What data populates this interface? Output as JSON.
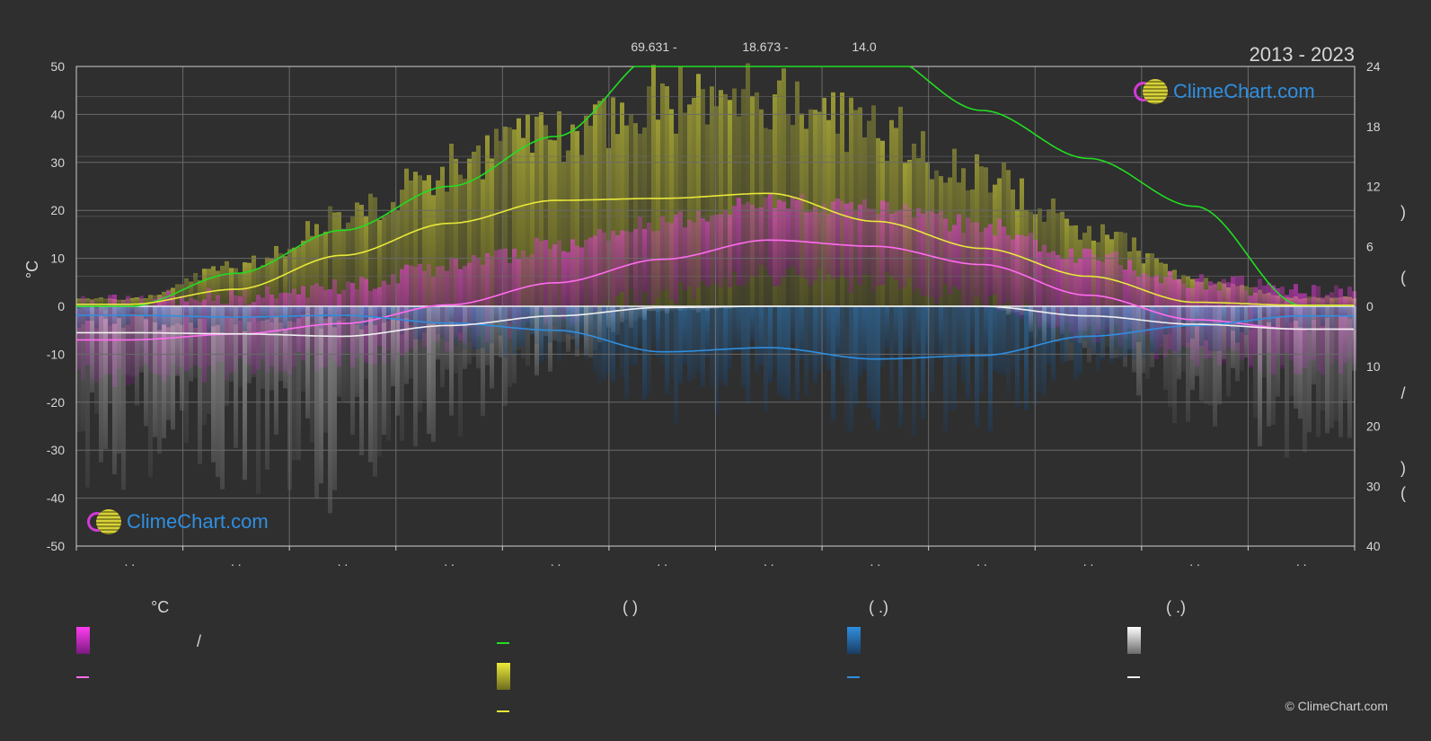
{
  "header": {
    "years": "2013 - 2023",
    "stat_values": [
      "69.631 -",
      "18.673 -",
      "14.0"
    ]
  },
  "axes": {
    "left_unit": "°C",
    "left_ticks": [
      "50",
      "40",
      "30",
      "20",
      "10",
      "0",
      "-10",
      "-20",
      "-30",
      "-40",
      "-50"
    ],
    "right_upper_ticks": [
      "24",
      "18",
      "12",
      "6",
      "0"
    ],
    "right_lower_ticks": [
      "10",
      "20",
      "30",
      "40"
    ],
    "right_label_glyphs": [
      ")",
      "(",
      "/",
      ")",
      "("
    ],
    "month_ticks": [
      ". .",
      ". .",
      ". .",
      ". .",
      ". .",
      ". .",
      ". .",
      ". .",
      ". .",
      ". .",
      ". .",
      ". ."
    ]
  },
  "logos": {
    "top_text": "ClimeChart.com",
    "bottom_text": "ClimeChart.com"
  },
  "legend": {
    "col1_head": "°C",
    "col1_item1": "/",
    "col2_head": "(          )",
    "col3_head": "(   .)",
    "col4_head": "(   .)"
  },
  "copyright": "© ClimeChart.com",
  "colors": {
    "background": "#2f2f2f",
    "grid": "#6a6a6a",
    "daylight": "#22dd22",
    "sunshine": "#e8e83a",
    "temp_mean": "#ff6cf0",
    "temp_band": "#e23ae8",
    "precip": "#2f8fe0",
    "snow": "#f0f0f0"
  },
  "chart_data": {
    "type": "line",
    "title": "",
    "ylabel": "°C",
    "ylim": [
      -50,
      50
    ],
    "y2_hours_lim": [
      0,
      24
    ],
    "y2_mm_lim": [
      0,
      40
    ],
    "x": [
      1,
      2,
      3,
      4,
      5,
      6,
      7,
      8,
      9,
      10,
      11,
      12
    ],
    "series": [
      {
        "key": "daylight",
        "axis": "hours",
        "values": [
          0.0,
          3.3,
          7.6,
          12.0,
          17.0,
          25.5,
          25.5,
          25.5,
          19.6,
          14.8,
          10.0,
          0.1
        ]
      },
      {
        "key": "sunshine",
        "axis": "hours",
        "values": [
          0.2,
          1.7,
          5.1,
          8.3,
          10.6,
          10.8,
          11.3,
          8.5,
          5.8,
          3.0,
          0.4,
          0.1
        ]
      },
      {
        "key": "temp_mean",
        "axis": "celsius",
        "values": [
          -7.0,
          -5.8,
          -3.6,
          0.3,
          4.9,
          9.8,
          13.8,
          12.5,
          8.7,
          2.3,
          -2.8,
          -4.8
        ]
      },
      {
        "key": "precip",
        "axis": "mm",
        "values": [
          1.5,
          1.8,
          1.5,
          2.8,
          4.0,
          7.6,
          6.9,
          8.8,
          8.2,
          5.0,
          3.2,
          1.6
        ]
      },
      {
        "key": "snow",
        "axis": "mm",
        "values": [
          4.4,
          4.6,
          5.0,
          3.2,
          1.6,
          0.2,
          0.0,
          0.0,
          0.0,
          1.6,
          3.0,
          3.8
        ]
      }
    ]
  }
}
